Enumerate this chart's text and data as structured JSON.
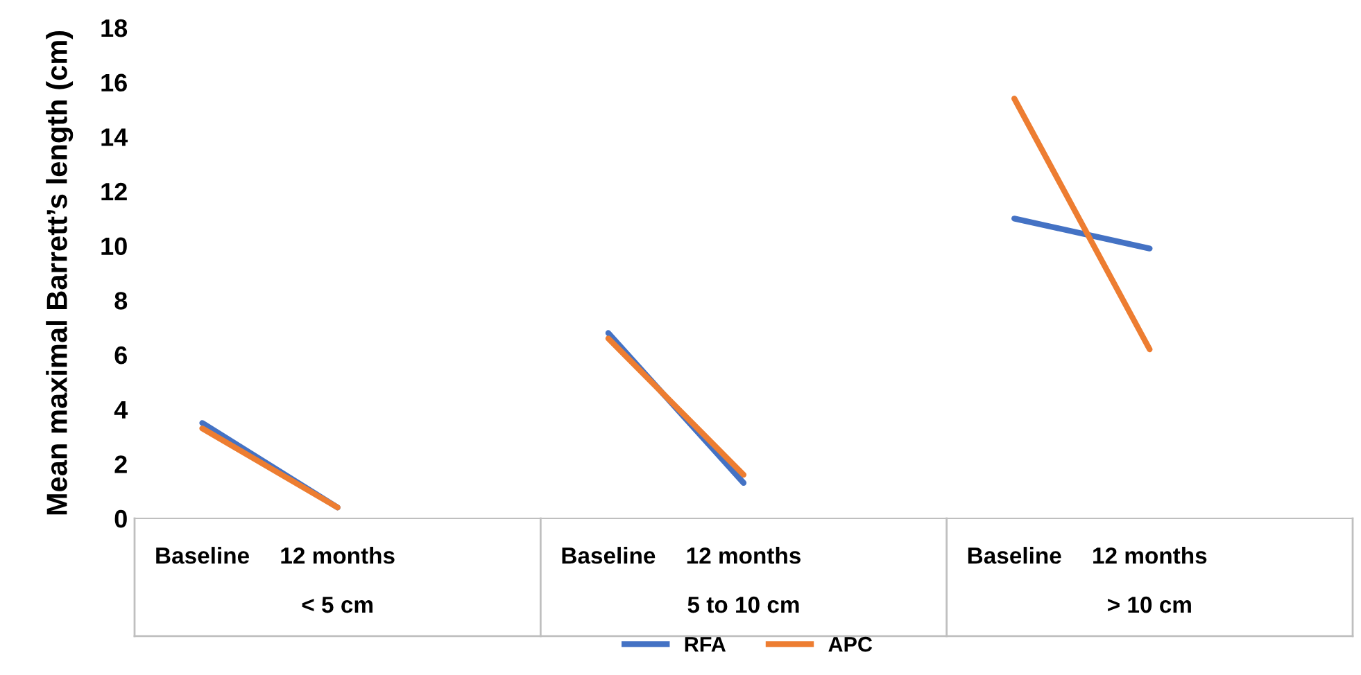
{
  "chart_data": {
    "type": "line",
    "ylabel": "Mean maximal Barrett’s length (cm)",
    "categories": [
      "Baseline",
      "12 months",
      null,
      "Baseline",
      "12 months",
      null,
      "Baseline",
      "12 months",
      null
    ],
    "series": [
      {
        "name": "RFA",
        "color": "#4472c4",
        "values": [
          3.5,
          0.4,
          null,
          6.8,
          1.3,
          null,
          11.0,
          9.9,
          null
        ]
      },
      {
        "name": "APC",
        "color": "#ed7d31",
        "values": [
          3.3,
          0.4,
          null,
          6.6,
          1.6,
          null,
          15.4,
          6.2,
          null
        ]
      }
    ],
    "annotations": [
      "< 5 cm",
      "5 to 10 cm",
      "> 10 cm"
    ],
    "ylim": [
      0,
      18
    ],
    "yticks": [
      0,
      2,
      4,
      6,
      8,
      10,
      12,
      14,
      16,
      18
    ],
    "grid": false,
    "legend": "bottom",
    "marker": "none",
    "line_style": "solid"
  }
}
